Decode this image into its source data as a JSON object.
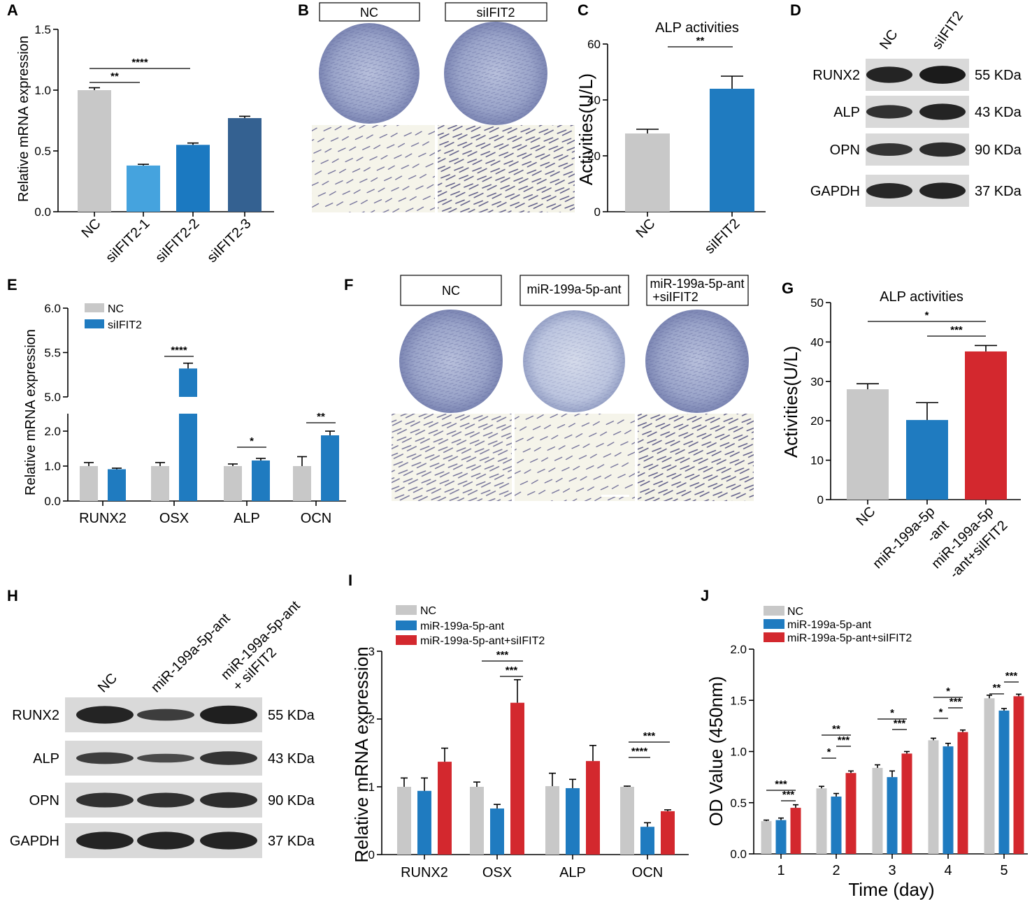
{
  "colors": {
    "gray": "#c8c8c8",
    "blue": "#1f7bc0",
    "lightblue": "#45a3de",
    "midblue": "#1b79c1",
    "darkblue": "#346191",
    "red": "#d3282e"
  },
  "panels": {
    "A": "A",
    "B": "B",
    "C": "C",
    "D": "D",
    "E": "E",
    "F": "F",
    "G": "G",
    "H": "H",
    "I": "I",
    "J": "J"
  },
  "chart_data": [
    {
      "id": "A",
      "type": "bar",
      "ylabel": "Relative mRNA expression",
      "ylim": [
        0,
        1.5
      ],
      "yticks": [
        "0.0",
        "0.5",
        "1.0",
        "1.5"
      ],
      "categories": [
        "NC",
        "siIFIT2-1",
        "siIFIT2-2",
        "siIFIT2-3"
      ],
      "values": [
        1.0,
        0.38,
        0.55,
        0.77
      ],
      "errors": [
        0.02,
        0.01,
        0.015,
        0.015
      ],
      "significance": [
        {
          "from": "NC",
          "to": "siIFIT2-1",
          "label": "**"
        },
        {
          "from": "NC",
          "to": "siIFIT2-2",
          "label": "****"
        }
      ]
    },
    {
      "id": "C",
      "type": "bar",
      "title": "ALP activities",
      "ylabel": "Activities(U/L)",
      "ylim": [
        0,
        60
      ],
      "yticks": [
        "0",
        "20",
        "40",
        "60"
      ],
      "categories": [
        "NC",
        "siIFIT2"
      ],
      "values": [
        28,
        44
      ],
      "errors": [
        1.5,
        4.5
      ],
      "significance": [
        {
          "from": "NC",
          "to": "siIFIT2",
          "label": "**"
        }
      ]
    },
    {
      "id": "E",
      "type": "bar",
      "ylabel": "Relative mRNA expression",
      "yticks_lower": [
        "0.0",
        "1.0",
        "2.0"
      ],
      "yticks_upper": [
        "5.0",
        "5.5",
        "6.0"
      ],
      "categories": [
        "RUNX2",
        "OSX",
        "ALP",
        "OCN"
      ],
      "series": [
        {
          "name": "NC",
          "values": [
            1.0,
            1.0,
            1.0,
            1.0
          ],
          "errors": [
            0.1,
            0.1,
            0.06,
            0.27
          ]
        },
        {
          "name": "siIFIT2",
          "values": [
            0.91,
            5.32,
            1.16,
            1.88
          ],
          "errors": [
            0.03,
            0.06,
            0.06,
            0.12
          ]
        }
      ],
      "significance": [
        "",
        "****",
        "*",
        "**"
      ]
    },
    {
      "id": "G",
      "type": "bar",
      "title": "ALP activities",
      "ylabel": "Activities(U/L)",
      "ylim": [
        0,
        50
      ],
      "yticks": [
        "0",
        "10",
        "20",
        "30",
        "40",
        "50"
      ],
      "categories": [
        "NC",
        "miR-199a-5p|-ant",
        "miR-199a-5p|-ant+siIFIT2"
      ],
      "values": [
        28,
        20.2,
        37.6
      ],
      "errors": [
        1.4,
        4.4,
        1.5
      ],
      "significance": [
        {
          "from": "NC",
          "to": "miR-199a-5p-ant+siIFIT2",
          "label": "*"
        },
        {
          "from": "miR-199a-5p-ant",
          "to": "miR-199a-5p-ant+siIFIT2",
          "label": "***"
        }
      ]
    },
    {
      "id": "I",
      "type": "bar",
      "ylabel": "Relative mRNA expression",
      "ylim": [
        0,
        3
      ],
      "yticks": [
        "0",
        "1",
        "2",
        "3"
      ],
      "categories": [
        "RUNX2",
        "OSX",
        "ALP",
        "OCN"
      ],
      "series": [
        {
          "name": "NC",
          "values": [
            1.0,
            1.0,
            1.01,
            1.0
          ],
          "errors": [
            0.13,
            0.07,
            0.19,
            0.01
          ]
        },
        {
          "name": "miR-199a-5p-ant",
          "values": [
            0.94,
            0.68,
            0.98,
            0.41
          ],
          "errors": [
            0.19,
            0.06,
            0.13,
            0.06
          ]
        },
        {
          "name": "miR-199a-5p-ant+siIFIT2",
          "values": [
            1.37,
            2.24,
            1.38,
            0.64
          ],
          "errors": [
            0.2,
            0.34,
            0.23,
            0.02
          ]
        }
      ],
      "significance": [
        {
          "cat": "OSX",
          "pairs": [
            [
              "NC",
              "ant+si",
              "***"
            ],
            [
              "ant",
              "ant+si",
              "***"
            ]
          ]
        },
        {
          "cat": "OCN",
          "pairs": [
            [
              "NC",
              "ant+si",
              "***"
            ],
            [
              "NC",
              "ant",
              "****"
            ]
          ]
        }
      ]
    },
    {
      "id": "J",
      "type": "bar",
      "ylabel": "OD Value (450nm)",
      "xlabel": "Time (day)",
      "ylim": [
        0,
        2.0
      ],
      "yticks": [
        "0.0",
        "0.5",
        "1.0",
        "1.5",
        "2.0"
      ],
      "categories": [
        "1",
        "2",
        "3",
        "4",
        "5"
      ],
      "series": [
        {
          "name": "NC",
          "values": [
            0.32,
            0.64,
            0.84,
            1.11,
            1.52
          ],
          "errors": [
            0.01,
            0.02,
            0.03,
            0.02,
            0.03
          ]
        },
        {
          "name": "miR-199a-5p-ant",
          "values": [
            0.33,
            0.56,
            0.75,
            1.05,
            1.4
          ],
          "errors": [
            0.02,
            0.03,
            0.06,
            0.03,
            0.02
          ]
        },
        {
          "name": "miR-199a-5p-ant+siIFIT2",
          "values": [
            0.45,
            0.79,
            0.98,
            1.19,
            1.54
          ],
          "errors": [
            0.03,
            0.02,
            0.02,
            0.02,
            0.02
          ]
        }
      ],
      "significance": [
        {
          "cat": "1",
          "top": "***",
          "bot": "***"
        },
        {
          "cat": "2",
          "top": "**",
          "bot": "***",
          "left": "*"
        },
        {
          "cat": "3",
          "top": "*",
          "bot": "***"
        },
        {
          "cat": "4",
          "top": "*",
          "bot": "***",
          "left": "*"
        },
        {
          "cat": "5",
          "left": "**",
          "bot": "***"
        }
      ]
    }
  ],
  "panel_B": {
    "labels": [
      "NC",
      "siIFIT2"
    ]
  },
  "panel_F": {
    "labels": [
      "NC",
      "miR-199a-5p-ant",
      "miR-199a-5p-ant",
      "+siIFIT2"
    ]
  },
  "panel_D": {
    "lanes": [
      "NC",
      "siIFIT2"
    ],
    "proteins": [
      "RUNX2",
      "ALP",
      "OPN",
      "GAPDH"
    ],
    "sizes": [
      "55 KDa",
      "43 KDa",
      "90 KDa",
      "37 KDa"
    ]
  },
  "panel_H": {
    "lanes": [
      "NC",
      "miR-199a-5p-ant",
      "miR-199a-5p-ant",
      "+ siIFIT2"
    ],
    "proteins": [
      "RUNX2",
      "ALP",
      "OPN",
      "GAPDH"
    ],
    "sizes": [
      "55 KDa",
      "43 KDa",
      "90 KDa",
      "37 KDa"
    ]
  }
}
